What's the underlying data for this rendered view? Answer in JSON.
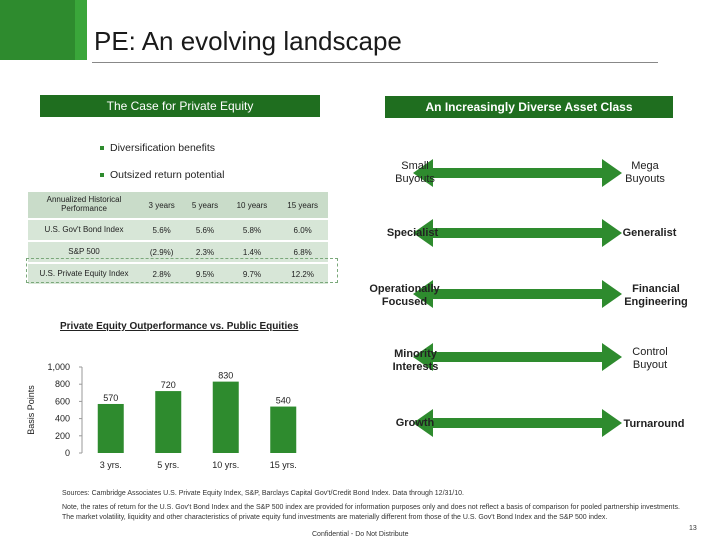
{
  "header": {
    "title": "PE: An evolving landscape"
  },
  "left_panel": {
    "banner": "The Case for Private Equity",
    "bullets": [
      "Diversification benefits",
      "Outsized return potential"
    ],
    "table": {
      "header_label": "Annualized Historical Performance",
      "columns": [
        "3 years",
        "5 years",
        "10 years",
        "15 years"
      ],
      "rows": [
        {
          "label": "U.S. Gov't Bond Index",
          "values": [
            "5.6%",
            "5.6%",
            "5.8%",
            "6.0%"
          ]
        },
        {
          "label": "S&P 500",
          "values": [
            "(2.9%)",
            "2.3%",
            "1.4%",
            "6.8%"
          ]
        },
        {
          "label": "U.S. Private Equity Index",
          "values": [
            "2.8%",
            "9.5%",
            "9.7%",
            "12.2%"
          ]
        }
      ]
    }
  },
  "chart_data": {
    "type": "bar",
    "title": "Private Equity Outperformance vs. Public Equities",
    "categories": [
      "3 yrs.",
      "5 yrs.",
      "10 yrs.",
      "15 yrs."
    ],
    "values": [
      570,
      720,
      830,
      540
    ],
    "value_labels": [
      "570",
      "720",
      "830",
      "540"
    ],
    "ylabel": "Basis Points",
    "xlabel": "",
    "ylim": [
      0,
      1000
    ],
    "yticks": [
      "0",
      "200",
      "400",
      "600",
      "800",
      "1,000"
    ],
    "ytick_values": [
      0,
      200,
      400,
      600,
      800,
      1000
    ],
    "bar_color": "#2e8b2e",
    "grid": false
  },
  "right_panel": {
    "banner": "An Increasingly Diverse Asset Class",
    "pairs": [
      {
        "left": "Small\nBuyouts",
        "right": "Mega\nBuyouts"
      },
      {
        "left": "Specialist",
        "right": "Generalist"
      },
      {
        "left": "Operationally\nFocused",
        "right": "Financial\nEngineering"
      },
      {
        "left": "Minority\nInterests",
        "right": "Control\nBuyout"
      },
      {
        "left": "Growth",
        "right": "Turnaround"
      }
    ],
    "arrow_color": "#2e8b2e"
  },
  "footer": {
    "sources": "Sources: Cambridge Associates U.S. Private Equity Index, S&P, Barclays Capital Gov't/Credit Bond Index. Data through 12/31/10.",
    "note": "Note, the rates of return for the U.S. Gov't Bond Index and the S&P 500 index are provided for information purposes only and does not reflect a basis of comparison for pooled partnership investments. The market volatility, liquidity and other characteristics of private equity fund investments are materially different from those of the U.S. Gov't Bond Index and the S&P 500 index.",
    "confidential": "Confidential - Do Not Distribute",
    "page_number": "13"
  },
  "colors": {
    "brand_green": "#2e8b2e",
    "banner_green": "#1f6e1f",
    "table_fill": "#d7e6d7"
  }
}
